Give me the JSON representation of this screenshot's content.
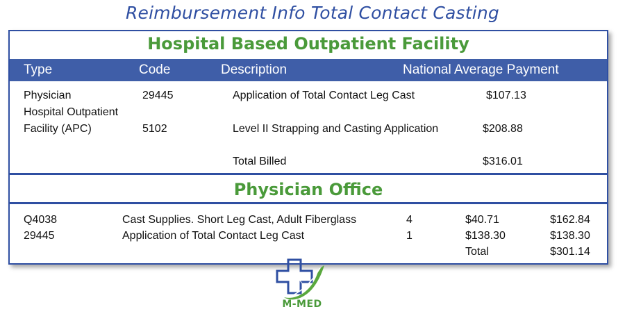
{
  "title": "Reimbursement Info Total Contact Casting",
  "hospital": {
    "section_title": "Hospital Based Outpatient Facility",
    "headers": [
      "Type",
      "Code",
      "Description",
      "National Average Payment"
    ],
    "rows": [
      {
        "type": "Physician",
        "code": "29445",
        "description": "Application of Total Contact Leg Cast",
        "payment": "$107.13"
      },
      {
        "type_line1": "Hospital Outpatient",
        "type_line2": "Facility (APC)",
        "code": "5102",
        "description": "Level II Strapping and Casting Application",
        "payment": "$208.88"
      }
    ],
    "total_label": "Total Billed",
    "total_value": "$316.01"
  },
  "office": {
    "section_title": "Physician Office",
    "rows": [
      {
        "code": "Q4038",
        "description": "Cast Supplies. Short Leg Cast, Adult Fiberglass",
        "qty": "4",
        "unit": "$40.71",
        "amount": "$162.84"
      },
      {
        "code": "29445",
        "description": "Application of Total Contact Leg Cast",
        "qty": "1",
        "unit": "$138.30",
        "amount": "$138.30"
      }
    ],
    "total_label": "Total",
    "total_value": "$301.14"
  },
  "logo": {
    "text": "M-MED",
    "icon": "medical-cross-leaf-icon",
    "colors": {
      "cross": "#2f4fa2",
      "leaf": "#4a9a3a"
    }
  }
}
